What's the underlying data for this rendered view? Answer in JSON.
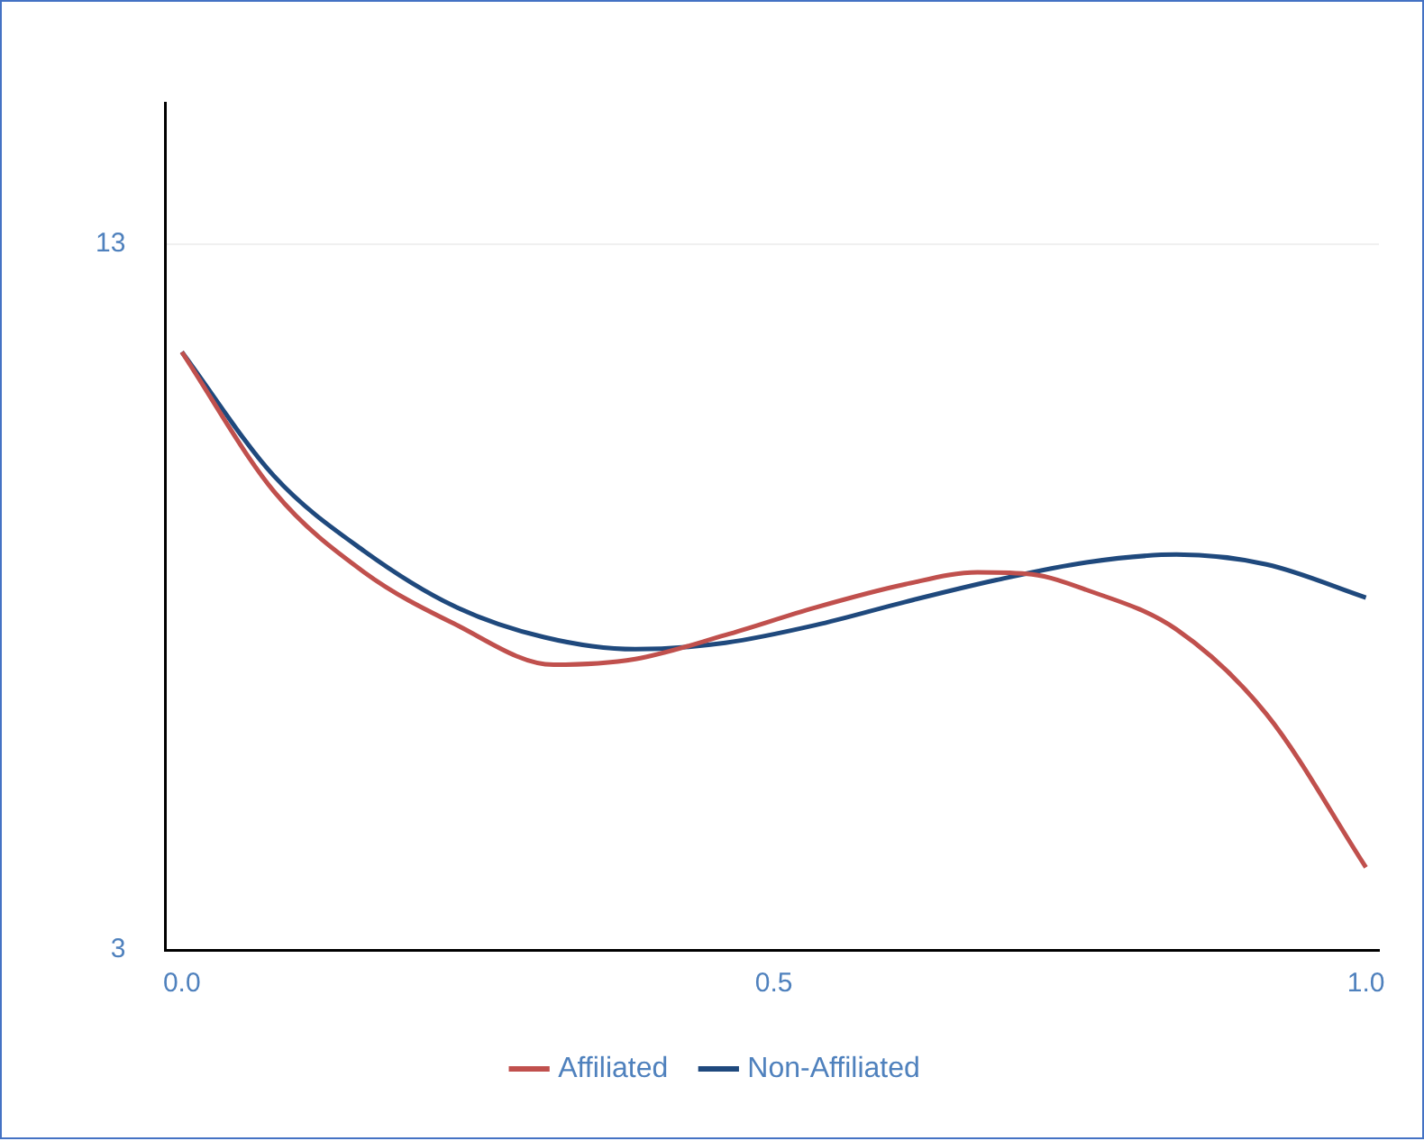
{
  "chart_data": {
    "type": "line",
    "xlim": [
      -0.014,
      1.011
    ],
    "xticks": [
      {
        "value": 0,
        "label": "0.0"
      },
      {
        "value": 0.5,
        "label": "0.5"
      },
      {
        "value": 1,
        "label": "1.0"
      }
    ],
    "ylim": [
      3,
      15
    ],
    "yticks": [
      3,
      13
    ],
    "grid": "y",
    "legend": "bottom",
    "marker": "none",
    "line_style": "solid",
    "series": [
      {
        "name": "Affiliated",
        "color": "#c0504d",
        "x": [
          0,
          0.078,
          0.154,
          0.23,
          0.314,
          0.383,
          0.459,
          0.535,
          0.611,
          0.672,
          0.718,
          0.764,
          0.84,
          0.916,
          1.0
        ],
        "values": [
          11.47,
          9.49,
          8.35,
          7.62,
          7.04,
          7.12,
          7.46,
          7.85,
          8.18,
          8.35,
          8.32,
          8.1,
          7.54,
          6.34,
          4.17
        ]
      },
      {
        "name": "Non-Affiliated",
        "color": "#1f497d",
        "x": [
          0,
          0.078,
          0.154,
          0.23,
          0.306,
          0.383,
          0.459,
          0.535,
          0.611,
          0.688,
          0.764,
          0.84,
          0.916,
          1.0
        ],
        "values": [
          11.47,
          9.71,
          8.65,
          7.87,
          7.43,
          7.26,
          7.35,
          7.6,
          7.93,
          8.24,
          8.49,
          8.6,
          8.46,
          7.99
        ]
      }
    ]
  }
}
